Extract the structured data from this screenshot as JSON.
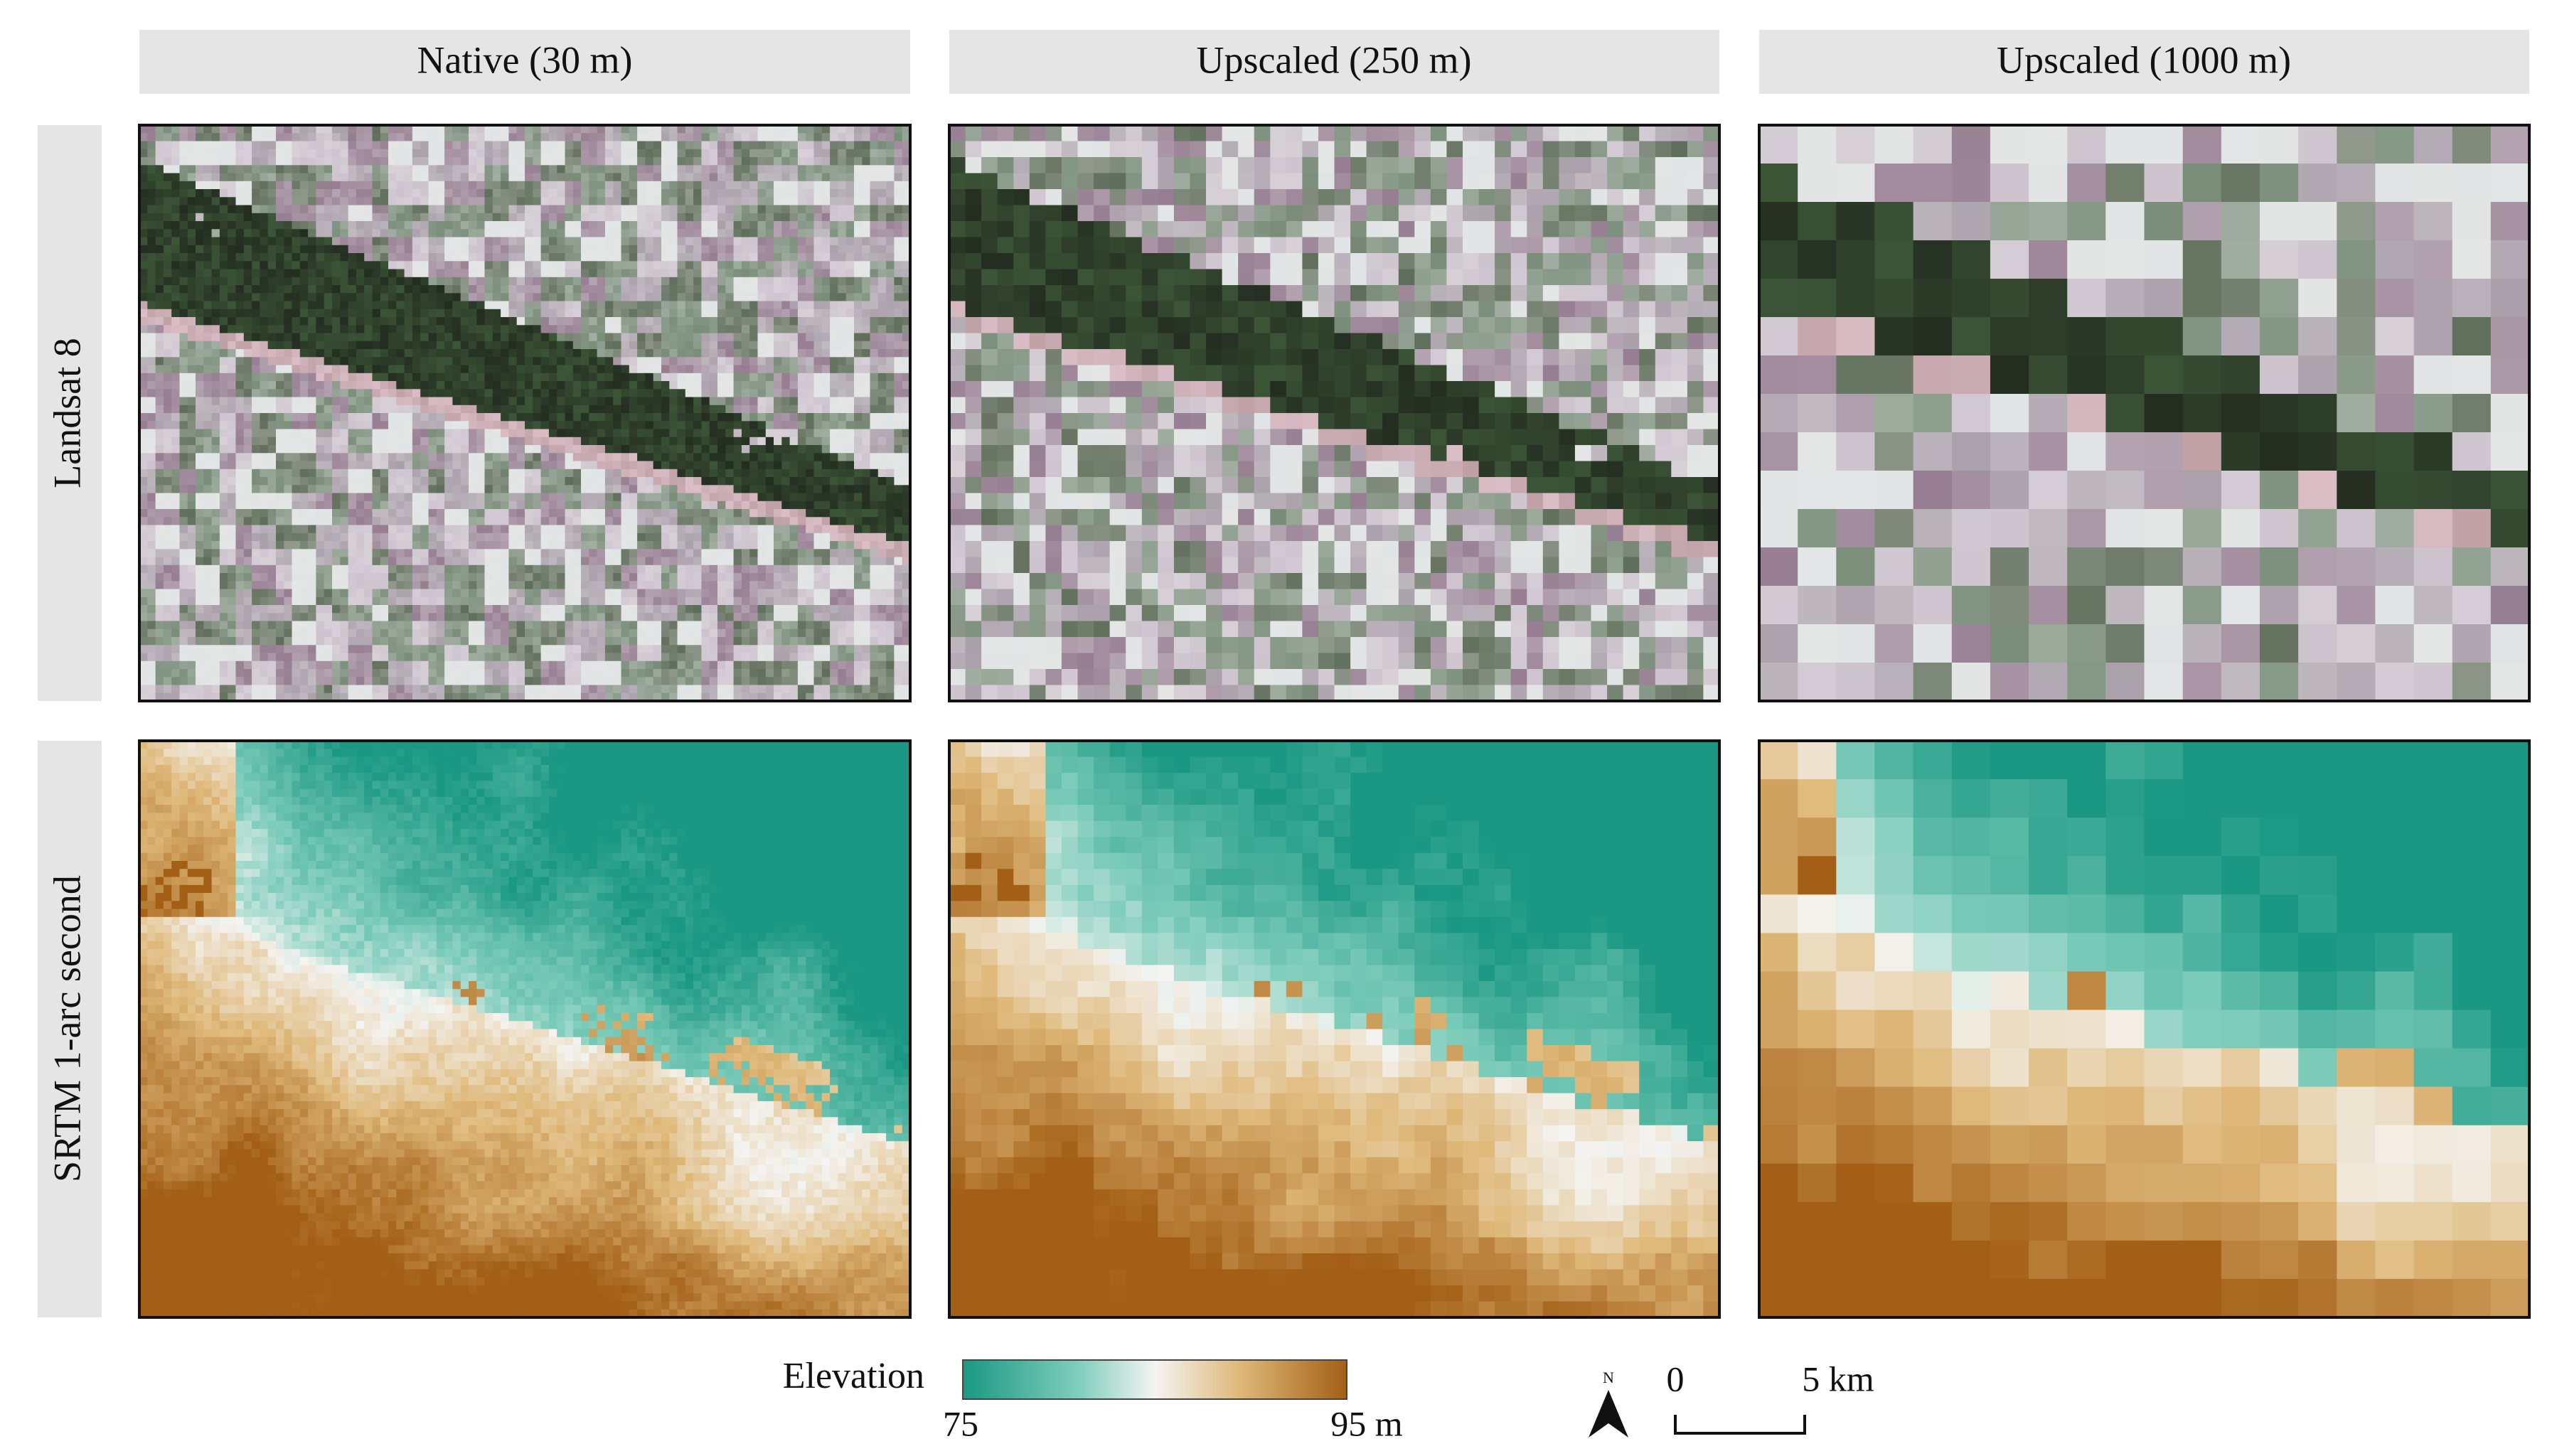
{
  "columns": [
    "Native (30 m)",
    "Upscaled (250 m)",
    "Upscaled (1000 m)"
  ],
  "rows": [
    "Landsat 8",
    "SRTM 1-arc second"
  ],
  "legend": {
    "title": "Elevation",
    "min": "75",
    "max": "95 m"
  },
  "north": "N",
  "scale_bar": {
    "start": "0",
    "end": "5 km"
  }
}
